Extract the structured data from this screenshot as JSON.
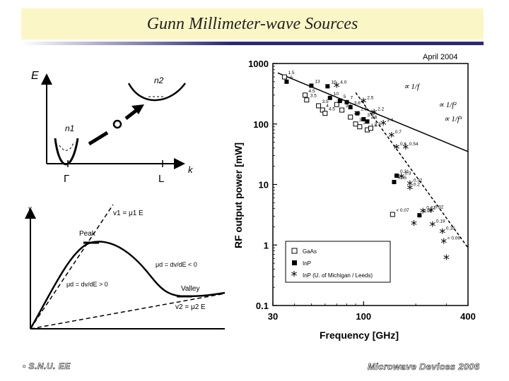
{
  "slide": {
    "title": "Gunn Millimeter-wave Sources",
    "footer_left": "• S.N.U. EE",
    "footer_right": "Microwave Devices 2006"
  },
  "band_diagram": {
    "y_axis": "E",
    "x_axis": "k",
    "n1": "n1",
    "n2": "n2",
    "gamma": "Γ",
    "l_point": "L"
  },
  "velocity_field": {
    "y_axis": "v",
    "x_axis": "E",
    "v1_eq": "v1 = μ1 E",
    "peak": "Peak",
    "valley": "Valley",
    "v2_eq": "v2 = μ2 E",
    "mu_d_neg": "μd = dv/dE < 0",
    "mu_d_pos": "μd = dv/dE > 0"
  },
  "chart_data": {
    "type": "scatter",
    "title": "April 2004",
    "xlabel": "Frequency  [GHz]",
    "ylabel": "RF output power  [mW]",
    "x_scale": "log",
    "y_scale": "log",
    "xlim": [
      30,
      400
    ],
    "ylim": [
      0.1,
      1000
    ],
    "x_ticks": [
      30,
      100,
      400
    ],
    "y_ticks": [
      0.1,
      1,
      10,
      100,
      1000
    ],
    "x_tick_labels": [
      "30",
      "100",
      "400"
    ],
    "y_tick_labels": [
      "0.1",
      "1",
      "10",
      "100",
      "1000"
    ],
    "trend_labels": [
      {
        "label": "∝ 1/f",
        "at_x": 170,
        "at_y": 380
      },
      {
        "label": "∝ 1/f²",
        "at_x": 270,
        "at_y": 190
      },
      {
        "label": "∝ 1/f³",
        "at_x": 290,
        "at_y": 110
      }
    ],
    "trend_lines": [
      {
        "name": "1/f",
        "style": "solid",
        "x": [
          32,
          400
        ],
        "y": [
          700,
          35
        ]
      },
      {
        "name": "1/f^3",
        "style": "dashed",
        "x": [
          90,
          400
        ],
        "y": [
          330,
          0.9
        ]
      }
    ],
    "series": [
      {
        "name": "GaAs",
        "marker": "open-square",
        "points": [
          {
            "x": 35,
            "y": 600,
            "label": "1.5"
          },
          {
            "x": 46,
            "y": 300,
            "label": "4.5"
          },
          {
            "x": 47,
            "y": 250,
            "label": "3.5"
          },
          {
            "x": 55,
            "y": 200,
            "label": "3.5"
          },
          {
            "x": 58,
            "y": 170,
            "label": "4"
          },
          {
            "x": 60,
            "y": 150,
            "label": "4.5"
          },
          {
            "x": 70,
            "y": 210,
            "label": "3"
          },
          {
            "x": 75,
            "y": 170,
            "label": "3.1"
          },
          {
            "x": 84,
            "y": 130,
            "label": "2.6"
          },
          {
            "x": 90,
            "y": 100,
            "label": "3"
          },
          {
            "x": 95,
            "y": 90,
            "label": "2.7"
          },
          {
            "x": 105,
            "y": 80,
            "label": "1.6"
          },
          {
            "x": 110,
            "y": 85,
            "label": "2.3"
          },
          {
            "x": 147,
            "y": 3.2,
            "label": "< 0.07"
          }
        ]
      },
      {
        "name": "InP",
        "marker": "filled-square",
        "points": [
          {
            "x": 36,
            "y": 500,
            "label": "6"
          },
          {
            "x": 50,
            "y": 430,
            "label": "13"
          },
          {
            "x": 62,
            "y": 420,
            "label": "10"
          },
          {
            "x": 64,
            "y": 270,
            "label": "10"
          },
          {
            "x": 73,
            "y": 240,
            "label": "5"
          },
          {
            "x": 80,
            "y": 230,
            "label": "7"
          },
          {
            "x": 84,
            "y": 190,
            "label": "3.6"
          },
          {
            "x": 92,
            "y": 150,
            "label": "2.5"
          },
          {
            "x": 100,
            "y": 120,
            "label": "3.4"
          },
          {
            "x": 105,
            "y": 110,
            "label": "2.6"
          },
          {
            "x": 155,
            "y": 14,
            "label": "0.31"
          },
          {
            "x": 150,
            "y": 11,
            "label": "0.35"
          },
          {
            "x": 210,
            "y": 3.1,
            "label": "0.09"
          }
        ]
      },
      {
        "name": "InP (U. of Michigan / Leeds)",
        "marker": "asterisk",
        "points": [
          {
            "x": 70,
            "y": 420,
            "label": "4.0"
          },
          {
            "x": 100,
            "y": 230,
            "label": "2.5"
          },
          {
            "x": 115,
            "y": 150,
            "label": "2.2"
          },
          {
            "x": 130,
            "y": 100,
            "label": "1.4"
          },
          {
            "x": 145,
            "y": 63,
            "label": "0.7"
          },
          {
            "x": 155,
            "y": 40,
            "label": "0.6"
          },
          {
            "x": 175,
            "y": 40,
            "label": "0.54"
          },
          {
            "x": 165,
            "y": 13,
            "label": "0.3"
          },
          {
            "x": 185,
            "y": 10,
            "label": "0.32"
          },
          {
            "x": 185,
            "y": 8.5,
            "label": "0.2"
          },
          {
            "x": 220,
            "y": 3.5,
            "label": "0.21"
          },
          {
            "x": 245,
            "y": 3.6,
            "label": "0.32"
          },
          {
            "x": 195,
            "y": 2.2,
            "label": ""
          },
          {
            "x": 250,
            "y": 2.1,
            "label": "0.19"
          },
          {
            "x": 285,
            "y": 1.6,
            "label": "0.16"
          },
          {
            "x": 290,
            "y": 1.1,
            "label": "< 0.09"
          },
          {
            "x": 300,
            "y": 0.6,
            "label": ""
          }
        ]
      }
    ],
    "legend": {
      "placement": "bottom-center",
      "entries": [
        "GaAs",
        "InP",
        "InP (U. of Michigan / Leeds)"
      ]
    }
  }
}
